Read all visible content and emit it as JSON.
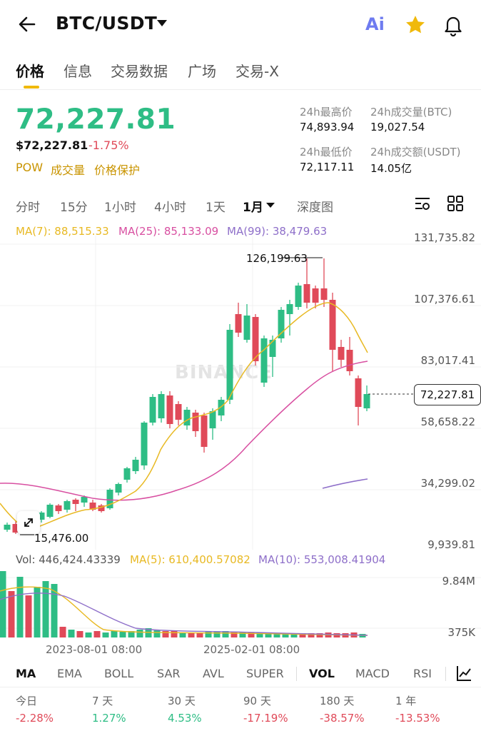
{
  "header": {
    "back_icon": "arrow-left-icon",
    "pair": "BTC/USDT",
    "ai_label": "Ai",
    "star_icon": "star-icon",
    "bell_icon": "bell-icon"
  },
  "tabs": [
    "价格",
    "信息",
    "交易数据",
    "广场",
    "交易-X"
  ],
  "price": {
    "last": "72,227.81",
    "usd": "$72,227.81",
    "change": "-1.75%",
    "tags": [
      "POW",
      "成交量",
      "价格保护"
    ]
  },
  "stats": {
    "high_label": "24h最高价",
    "high": "74,893.94",
    "vol_btc_label": "24h成交量(BTC)",
    "vol_btc": "19,027.54",
    "low_label": "24h最低价",
    "low": "72,117.11",
    "vol_usdt_label": "24h成交额(USDT)",
    "vol_usdt": "14.05亿"
  },
  "intervals": [
    "分时",
    "15分",
    "1小时",
    "4小时",
    "1天",
    "1月",
    "深度图"
  ],
  "ma_legend": {
    "ma7": "MA(7): 88,515.33",
    "ma25": "MA(25): 85,133.09",
    "ma99": "MA(99): 38,479.63"
  },
  "y_axis": [
    "131,735.82",
    "107,376.61",
    "83,017.41",
    "58,658.22",
    "34,299.02",
    "9,939.81"
  ],
  "current_price_tag": "72,227.81",
  "watermark": "BINANCE",
  "max_label": "126,199.63",
  "min_label": "15,476.00",
  "volume": {
    "vol": "Vol: 446,424.43339",
    "ma5": "MA(5): 610,400.57082",
    "ma10": "MA(10): 553,008.41904",
    "axis_top": "9.84M",
    "axis_bottom": "375K"
  },
  "dates": [
    "2023-08-01 08:00",
    "2025-02-01 08:00"
  ],
  "indicators": [
    "MA",
    "EMA",
    "BOLL",
    "SAR",
    "AVL",
    "SUPER",
    "VOL",
    "MACD",
    "RSI"
  ],
  "periods": [
    {
      "label": "今日",
      "value": "-2.28%"
    },
    {
      "label": "7 天",
      "value": "1.27%"
    },
    {
      "label": "30 天",
      "value": "4.53%"
    },
    {
      "label": "90 天",
      "value": "-17.19%"
    },
    {
      "label": "180 天",
      "value": "-38.57%"
    },
    {
      "label": "1 年",
      "value": "-13.53%"
    }
  ],
  "colors": {
    "up": "#2ebd85",
    "down": "#e04a59",
    "ma7": "#e8b923",
    "ma25": "#d84fa1",
    "ma99": "#8e6fc9",
    "accent": "#f0b90b"
  }
}
